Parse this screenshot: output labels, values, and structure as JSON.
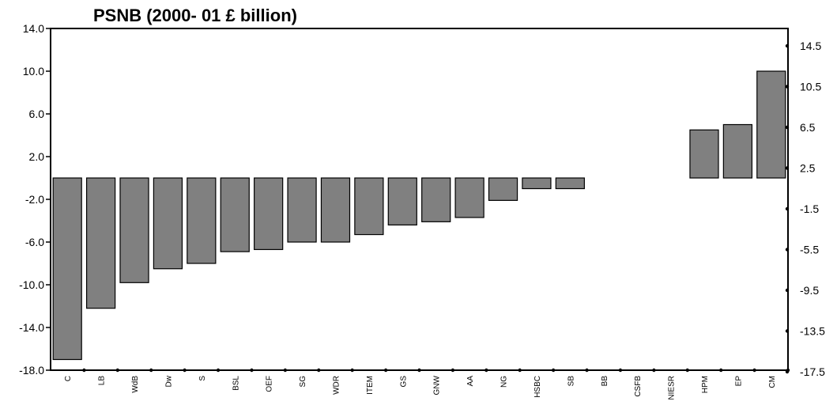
{
  "chart_data": {
    "type": "bar",
    "title": "PSNB (2000- 01 £ billion)",
    "xlabel": "",
    "ylabel": "",
    "categories": [
      "C",
      "LB",
      "WdB",
      "Dw",
      "S",
      "BSL",
      "OEF",
      "SG",
      "WDR",
      "ITEM",
      "GS",
      "GNW",
      "AA",
      "NG",
      "HSBC",
      "SB",
      "BB",
      "CSFB",
      "NIESR",
      "HPM",
      "EP",
      "CM"
    ],
    "values": [
      -17.0,
      -12.2,
      -9.8,
      -8.5,
      -8.0,
      -6.9,
      -6.7,
      -6.0,
      -6.0,
      -5.3,
      -4.4,
      -4.1,
      -3.7,
      -2.1,
      -1.0,
      -1.0,
      0.0,
      0.0,
      0.0,
      4.5,
      5.0,
      10.0
    ],
    "ylim": [
      -18,
      14
    ],
    "y_ticks": [
      "14.0",
      "10.0",
      "6.0",
      "2.0",
      "-2.0",
      "-6.0",
      "-10.0",
      "-14.0",
      "-18.0"
    ],
    "y2_ticks": [
      "14.5",
      "10.5",
      "6.5",
      "2.5",
      "-1.5",
      "-5.5",
      "-9.5",
      "-13.5",
      "-17.5"
    ],
    "grid": false,
    "bar_color": "#808080",
    "bar_edge_color": "#000000"
  }
}
